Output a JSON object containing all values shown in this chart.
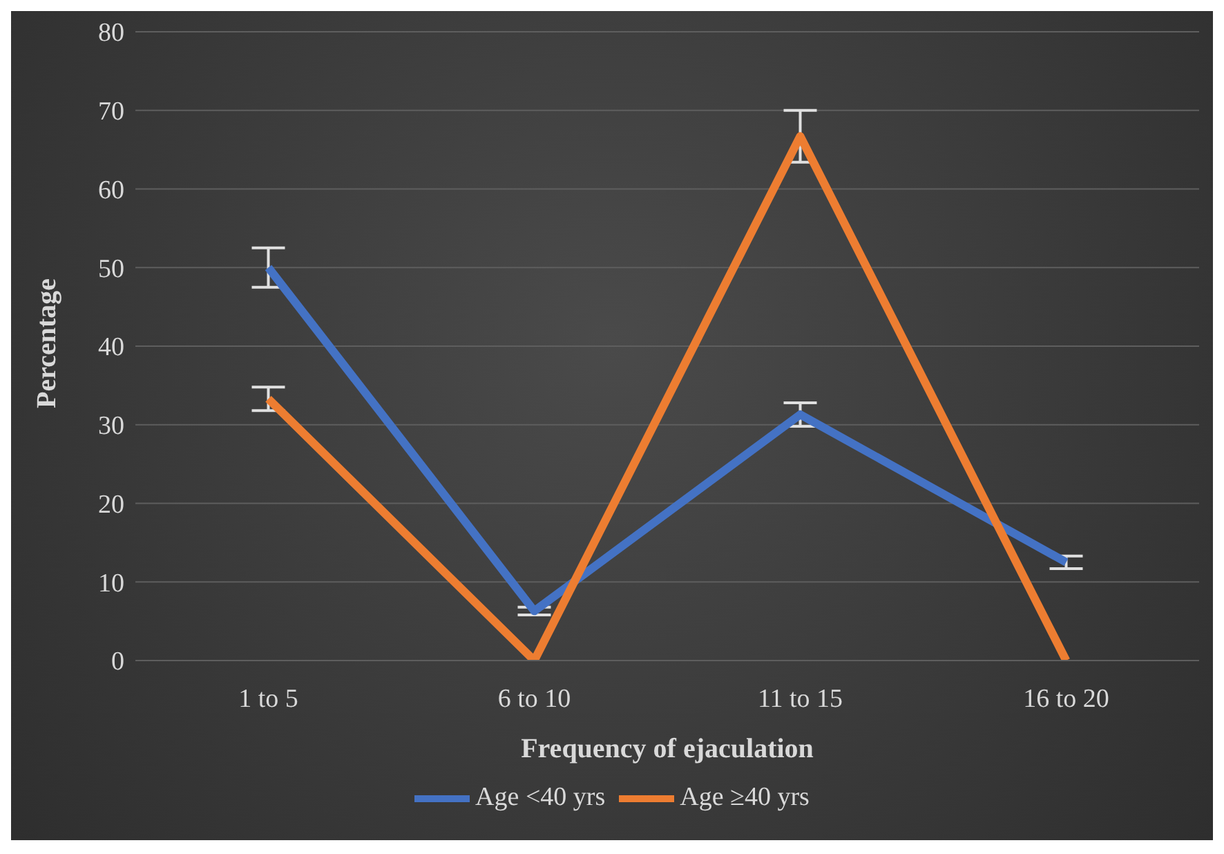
{
  "chart_data": {
    "type": "line",
    "xlabel": "Frequency of ejaculation",
    "ylabel": "Percentage",
    "categories": [
      "1 to 5",
      "6 to 10",
      "11 to 15",
      "16 to 20"
    ],
    "series": [
      {
        "name": "Age <40 yrs",
        "color": "#4472c4",
        "values": [
          50,
          6.3,
          31.3,
          12.5
        ],
        "errors": [
          2.5,
          0.5,
          1.5,
          0.8
        ]
      },
      {
        "name": "Age ≥40 yrs",
        "color": "#ed7d31",
        "values": [
          33.3,
          0,
          66.7,
          0
        ],
        "errors": [
          1.5,
          null,
          3.3,
          null
        ]
      }
    ],
    "ylim": [
      0,
      80
    ],
    "yticks": [
      0,
      10,
      20,
      30,
      40,
      50,
      60,
      70,
      80
    ],
    "grid": "y",
    "legend": "bottom",
    "marker": "none",
    "line_style": "solid"
  }
}
